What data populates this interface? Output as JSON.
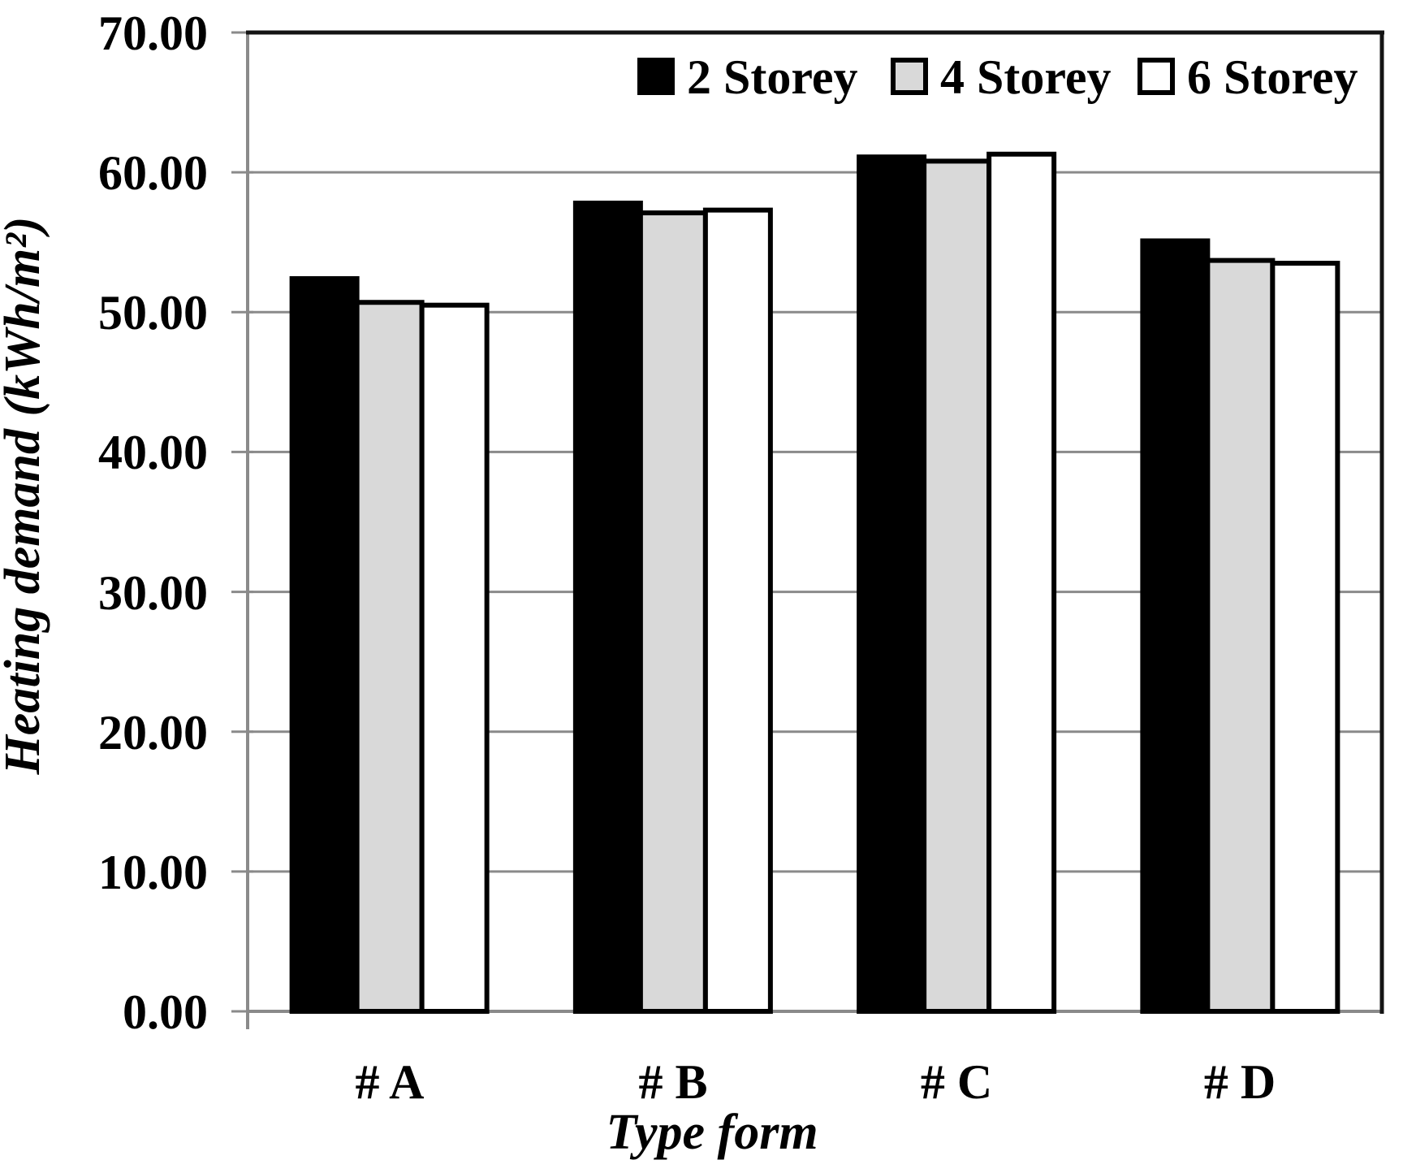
{
  "chart_data": {
    "type": "bar",
    "title": "",
    "categories": [
      "# A",
      "# B",
      "# C",
      "# D"
    ],
    "series": [
      {
        "name": "2 Storey",
        "fill": "#000000",
        "values": [
          52.4,
          57.8,
          61.1,
          55.1
        ]
      },
      {
        "name": "4 Storey",
        "fill": "#d9d9d9",
        "values": [
          50.7,
          57.1,
          60.8,
          53.7
        ]
      },
      {
        "name": "6 Storey",
        "fill": "#ffffff",
        "values": [
          50.5,
          57.3,
          61.3,
          53.5
        ]
      }
    ],
    "xlabel": "Type form",
    "ylabel": "Heating demand (kWh/m²)",
    "ylim": [
      0,
      70
    ],
    "ytick_step": 10,
    "ytick_labels": [
      "0.00",
      "10.00",
      "20.00",
      "30.00",
      "40.00",
      "50.00",
      "60.00",
      "70.00"
    ],
    "grid": true,
    "legend_position": "top-inside",
    "colors": {
      "gridline": "#8a8a8a",
      "axis_gray": "#8a8a8a",
      "frame_dark": "#141414",
      "bar_outline": "#000000",
      "background": "#ffffff"
    }
  }
}
